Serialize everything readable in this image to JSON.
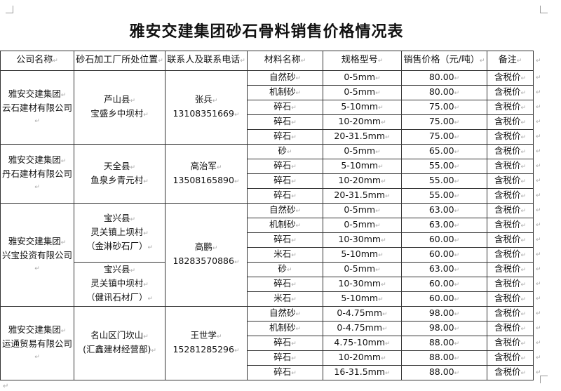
{
  "title": "雅安交建集团砂石骨料销售价格情况表",
  "headers": [
    "公司名称",
    "砂石加工厂所处位置",
    "联系人及联系电话",
    "材料名称",
    "规格型号",
    "销售价格（元/吨）",
    "备注"
  ],
  "groups": [
    {
      "company": [
        "雅安交建集团",
        "云石建材有限公司"
      ],
      "locations": [
        {
          "lines": [
            "芦山县",
            "宝盛乡中坝村"
          ],
          "rows": 5
        }
      ],
      "contact": {
        "name": "张兵",
        "phone": "13108351669"
      },
      "items": [
        [
          "自然砂",
          "0-5mm",
          "80.00",
          "含税价"
        ],
        [
          "机制砂",
          "0-5mm",
          "80.00",
          "含税价"
        ],
        [
          "碎石",
          "5-10mm",
          "75.00",
          "含税价"
        ],
        [
          "碎石",
          "10-20mm",
          "75.00",
          "含税价"
        ],
        [
          "碎石",
          "20-31.5mm",
          "75.00",
          "含税价"
        ]
      ]
    },
    {
      "company": [
        "雅安交建集团",
        "丹石建材有限公司"
      ],
      "locations": [
        {
          "lines": [
            "天全县",
            "鱼泉乡青元村"
          ],
          "rows": 4
        }
      ],
      "contact": {
        "name": "高治军",
        "phone": "13508165890"
      },
      "items": [
        [
          "砂",
          "0-5mm",
          "65.00",
          "含税价"
        ],
        [
          "碎石",
          "5-10mm",
          "55.00",
          "含税价"
        ],
        [
          "碎石",
          "10-20mm",
          "55.00",
          "含税价"
        ],
        [
          "碎石",
          "20-31.5mm",
          "55.00",
          "含税价"
        ]
      ]
    },
    {
      "company": [
        "雅安交建集团",
        "兴宝投资有限公司"
      ],
      "locations": [
        {
          "lines": [
            "宝兴县",
            "灵关镇上坝村",
            "（金淋砂石厂）"
          ],
          "rows": 4
        },
        {
          "lines": [
            "宝兴县",
            "灵关镇中坝村",
            "（健讯石材厂）"
          ],
          "rows": 3
        }
      ],
      "contact": {
        "name": "高鹏",
        "phone": "18283570886"
      },
      "items": [
        [
          "自然砂",
          "0-5mm",
          "63.00",
          "含税价"
        ],
        [
          "机制砂",
          "0-5mm",
          "63.00",
          "含税价"
        ],
        [
          "碎石",
          "10-30mm",
          "60.00",
          "含税价"
        ],
        [
          "米石",
          "5-10mm",
          "60.00",
          "含税价"
        ],
        [
          "砂",
          "0-5mm",
          "63.00",
          "含税价"
        ],
        [
          "碎石",
          "10-30mm",
          "60.00",
          "含税价"
        ],
        [
          "米石",
          "5-10mm",
          "60.00",
          "含税价"
        ]
      ]
    },
    {
      "company": [
        "雅安交建集团",
        "运通贸易有限公司"
      ],
      "locations": [
        {
          "lines": [
            "名山区门坎山",
            "(汇鑫建材经营部)"
          ],
          "rows": 5
        }
      ],
      "contact": {
        "name": "王世学",
        "phone": "15281285296"
      },
      "items": [
        [
          "自然砂",
          "0-4.75mm",
          "98.00",
          "含税价"
        ],
        [
          "机制砂",
          "0-4.75mm",
          "98.00",
          "含税价"
        ],
        [
          "碎石",
          "4.75-10mm",
          "88.00",
          "含税价"
        ],
        [
          "碎石",
          "10-20mm",
          "88.00",
          "含税价"
        ],
        [
          "碎石",
          "16-31.5mm",
          "88.00",
          "含税价"
        ]
      ]
    }
  ]
}
